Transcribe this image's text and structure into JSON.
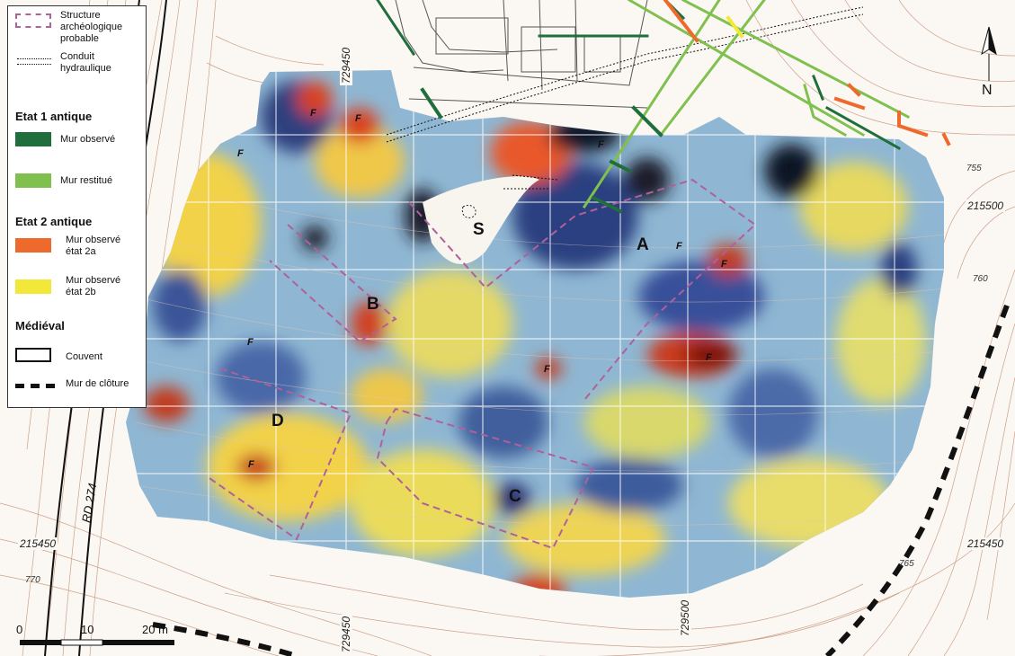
{
  "legend": {
    "structure": "Structure archéologique probable",
    "conduit": "Conduit hydraulique",
    "etat1_title": "Etat 1 antique",
    "mur_observe": "Mur observé",
    "mur_restitue": "Mur restitué",
    "etat2_title": "Etat 2 antique",
    "mur_2a": "Mur observé état 2a",
    "mur_2b": "Mur observé état 2b",
    "medieval_title": "Médiéval",
    "couvent": "Couvent",
    "mur_cloture": "Mur de clôture"
  },
  "colors": {
    "structure": "#b0609a",
    "mur_observe": "#1f6e3c",
    "mur_restitue": "#7fc04e",
    "mur_2a": "#ee6a2c",
    "mur_2b": "#f2e83a",
    "contour": "#c28a6e"
  },
  "zones": {
    "A": "A",
    "B": "B",
    "C": "C",
    "D": "D",
    "S": "S",
    "F": "F"
  },
  "coords": {
    "x1": "729450",
    "x2": "729500",
    "y1": "215500",
    "y2": "215450"
  },
  "contours": {
    "c755": "755",
    "c760": "760",
    "c765": "765",
    "c770": "770"
  },
  "road": "RD 274",
  "north": "N",
  "scale": {
    "zero": "0",
    "ten": "10",
    "twenty": "20 m"
  }
}
